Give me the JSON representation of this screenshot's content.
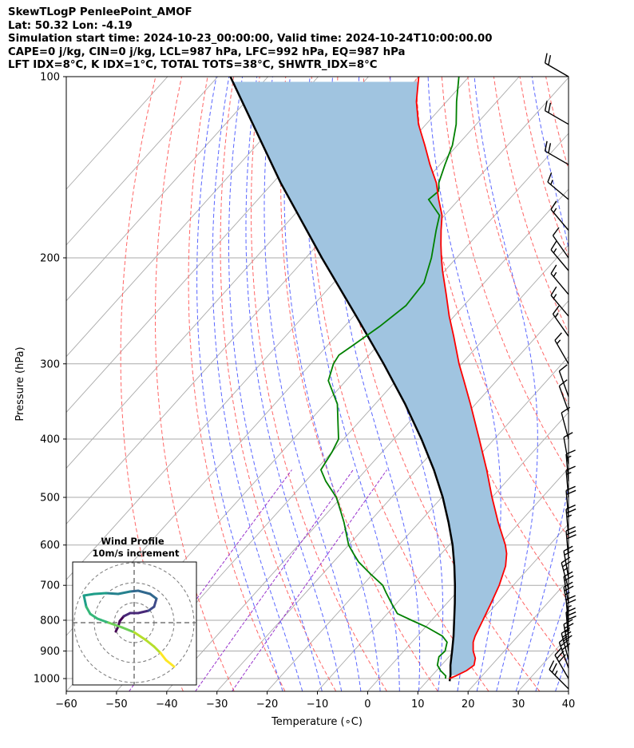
{
  "header": {
    "line1": "SkewTLogP PenleePoint_AMOF",
    "line2": "Lat: 50.32   Lon: -4.19",
    "line3": "Simulation start time: 2024-10-23_00:00:00, Valid time: 2024-10-24T10:00:00.00",
    "line4": "CAPE=0 j/kg, CIN=0 j/kg, LCL=987 hPa, LFC=992 hPa, EQ=987 hPa",
    "line5": "LFT IDX=8°C, K IDX=1°C, TOTAL TOTS=38°C, SHWTR_IDX=8°C"
  },
  "colors": {
    "temperature": "#ff0000",
    "dewpoint": "#008000",
    "parcel": "#000000",
    "shade": "#a0c4e0",
    "dry_adiabat": "#ff6666",
    "moist_adiabat": "#5a66ff",
    "mixing_ratio": "#9933cc",
    "isotherm": "#aaaaaa"
  },
  "chart_data": [
    {
      "type": "line",
      "subtype": "skew-t log-p",
      "xlabel": "Temperature (∘C)",
      "ylabel": "Pressure (hPa)",
      "xlim": [
        -60,
        40
      ],
      "ylim": [
        1050,
        100
      ],
      "y_scale": "log",
      "x_ticks": [
        -60,
        -50,
        -40,
        -30,
        -20,
        -10,
        0,
        10,
        20,
        30,
        40
      ],
      "x_tick_labels": [
        "−60",
        "−50",
        "−40",
        "−30",
        "−20",
        "−10",
        "0",
        "10",
        "20",
        "30",
        "40"
      ],
      "y_ticks": [
        100,
        200,
        300,
        400,
        500,
        600,
        700,
        800,
        900,
        1000
      ],
      "y_tick_labels": [
        "100",
        "200",
        "300",
        "400",
        "500",
        "600",
        "700",
        "800",
        "900",
        "1000"
      ],
      "grid": true,
      "series": [
        {
          "key": "temperature",
          "p": [
            1000,
            990,
            970,
            950,
            925,
            900,
            870,
            850,
            800,
            750,
            700,
            650,
            620,
            600,
            550,
            500,
            450,
            400,
            350,
            320,
            300,
            270,
            250,
            230,
            210,
            200,
            190,
            180,
            170,
            160,
            150,
            140,
            130,
            120,
            110,
            100
          ],
          "t": [
            14.0,
            14.8,
            16.0,
            16.5,
            15.5,
            13.8,
            12.2,
            11.5,
            10.2,
            8.8,
            7.2,
            5.0,
            3.0,
            1.2,
            -4.3,
            -10.0,
            -16.0,
            -23.0,
            -31.0,
            -36.5,
            -40.5,
            -46.5,
            -51.0,
            -55.5,
            -60.5,
            -63.0,
            -65.5,
            -68.0,
            -70.5,
            -74.0,
            -77.5,
            -82.0,
            -86.5,
            -91.5,
            -96.0,
            -100.0
          ]
        },
        {
          "key": "dewpoint",
          "p": [
            1000,
            990,
            970,
            950,
            920,
            900,
            870,
            850,
            820,
            800,
            780,
            750,
            720,
            700,
            670,
            640,
            620,
            600,
            550,
            520,
            500,
            470,
            450,
            420,
            400,
            380,
            350,
            320,
            300,
            290,
            280,
            260,
            240,
            220,
            200,
            180,
            170,
            160,
            155,
            150,
            140,
            130,
            120,
            110,
            100
          ],
          "td": [
            13.2,
            12.8,
            10.8,
            9.2,
            8.0,
            8.2,
            7.0,
            5.0,
            0.0,
            -4.0,
            -8.0,
            -11.0,
            -14.0,
            -16.0,
            -20.5,
            -25.0,
            -27.5,
            -30.0,
            -35.0,
            -38.5,
            -41.0,
            -46.0,
            -49.0,
            -50.0,
            -51.0,
            -53.5,
            -57.5,
            -63.5,
            -65.5,
            -66.0,
            -65.0,
            -63.0,
            -61.5,
            -62.0,
            -65.0,
            -69.0,
            -71.0,
            -76.0,
            -75.5,
            -77.0,
            -79.0,
            -81.0,
            -84.0,
            -88.0,
            -92.0
          ]
        },
        {
          "key": "parcel",
          "p": [
            1010,
            987,
            950,
            900,
            850,
            800,
            750,
            700,
            650,
            600,
            550,
            500,
            450,
            400,
            350,
            300,
            250,
            200,
            150,
            100
          ],
          "t": [
            14.5,
            13.6,
            11.8,
            9.6,
            7.2,
            4.5,
            1.6,
            -1.6,
            -5.2,
            -9.3,
            -14.2,
            -19.8,
            -26.5,
            -34.5,
            -44.0,
            -55.5,
            -69.5,
            -86.8,
            -108.5,
            -137.5
          ]
        }
      ]
    }
  ],
  "wind_barbs": {
    "p": [
      1040,
      1000,
      960,
      930,
      900,
      860,
      820,
      780,
      750,
      710,
      680,
      630,
      580,
      540,
      500,
      470,
      440,
      400,
      360,
      340,
      300,
      270,
      250,
      230,
      210,
      200,
      180,
      160,
      140,
      120,
      100
    ],
    "speed_kt": [
      25,
      30,
      30,
      30,
      25,
      30,
      25,
      25,
      20,
      25,
      20,
      30,
      25,
      20,
      15,
      15,
      10,
      10,
      10,
      10,
      15,
      15,
      15,
      15,
      15,
      10,
      15,
      15,
      20,
      20,
      20
    ],
    "direction_deg": [
      315,
      330,
      340,
      345,
      350,
      355,
      355,
      350,
      350,
      345,
      350,
      355,
      355,
      355,
      355,
      355,
      350,
      345,
      340,
      340,
      330,
      325,
      320,
      320,
      320,
      325,
      320,
      310,
      300,
      300,
      300
    ]
  },
  "hodograph": {
    "title_line1": "Wind Profile",
    "title_line2": "10m/s increment",
    "rings": 3,
    "points": [
      [
        5,
        -5.5
      ],
      [
        4,
        -4.7
      ],
      [
        3.3,
        -3.8
      ],
      [
        2.5,
        -3.0
      ],
      [
        1.5,
        -2.2
      ],
      [
        0,
        -1.2
      ],
      [
        -1.5,
        -0.6
      ],
      [
        -3.2,
        0.0
      ],
      [
        -4.6,
        0.5
      ],
      [
        -5.5,
        1.1
      ],
      [
        -6.0,
        2.0
      ],
      [
        -6.3,
        3.4
      ],
      [
        -5.0,
        3.6
      ],
      [
        -3.5,
        3.7
      ],
      [
        -2.0,
        3.6
      ],
      [
        -0.5,
        3.9
      ],
      [
        0.5,
        4.0
      ],
      [
        2.0,
        3.6
      ],
      [
        2.8,
        3.0
      ],
      [
        2.5,
        2.0
      ],
      [
        1.8,
        1.5
      ],
      [
        0.5,
        1.2
      ],
      [
        -0.5,
        1.2
      ],
      [
        -1.3,
        0.8
      ],
      [
        -1.8,
        0.2
      ],
      [
        -2.0,
        -0.5
      ],
      [
        -2.3,
        -1.1
      ]
    ]
  }
}
